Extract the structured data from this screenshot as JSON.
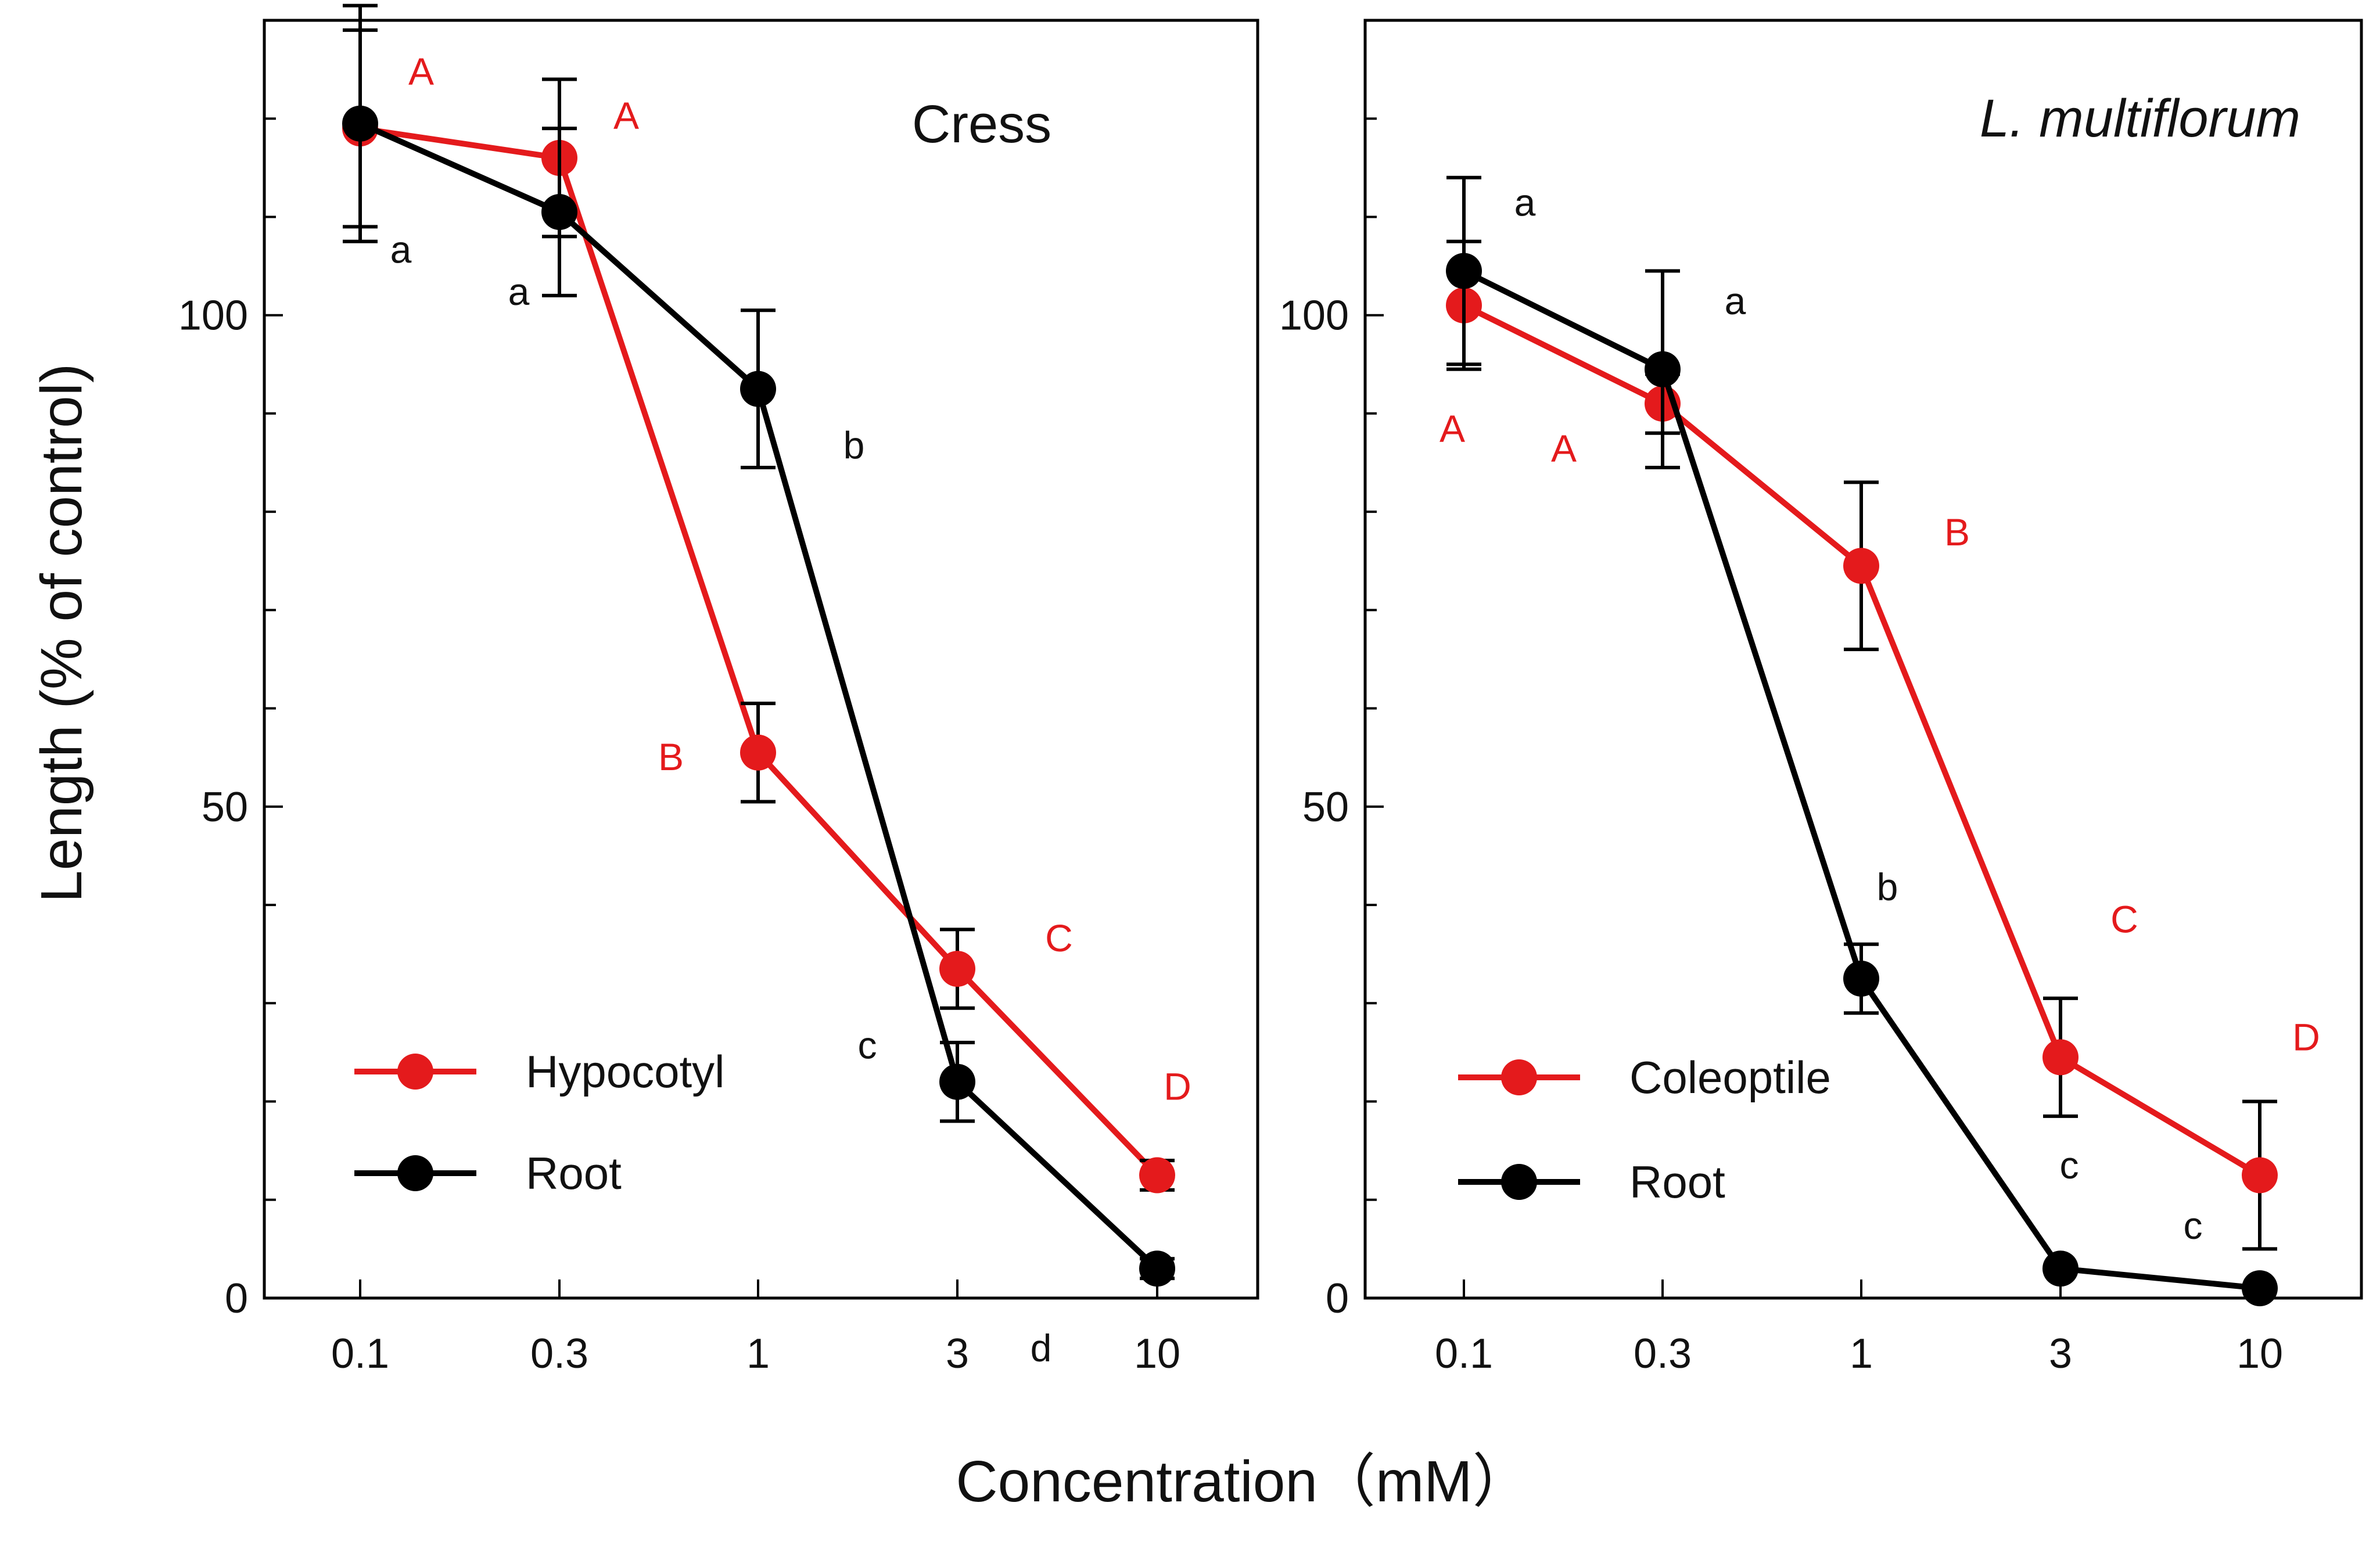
{
  "figure": {
    "ylabel": "Length  (% of control)",
    "xlabel": "Concentration（mM）"
  },
  "colors": {
    "red": "#e41a1c",
    "black": "#000000"
  },
  "chart_data": [
    {
      "type": "line",
      "title": "Cress",
      "title_italic": false,
      "xlabel": "Concentration（mM）",
      "ylabel": "Length  (% of control)",
      "x_scale": "categorical",
      "categories": [
        "0.1",
        "0.3",
        "1",
        "3",
        "10"
      ],
      "ylim": [
        0,
        130
      ],
      "y_ticks": [
        0,
        50,
        100
      ],
      "y_minor_ticks": [
        10,
        20,
        30,
        40,
        60,
        70,
        80,
        90,
        110,
        120
      ],
      "legend_position": "bottom-left",
      "series": [
        {
          "name": "Hypocotyl",
          "color": "#e41a1c",
          "values": [
            119,
            116,
            55.5,
            33.5,
            12.5
          ],
          "err_low": [
            10,
            8,
            5,
            4,
            1.5
          ],
          "err_high": [
            10,
            8,
            5,
            4,
            1.5
          ],
          "letters": [
            "A",
            "A",
            "B",
            "C",
            "D"
          ]
        },
        {
          "name": "Root",
          "color": "#000000",
          "values": [
            119.5,
            110.5,
            92.5,
            22,
            3
          ],
          "err_low": [
            12,
            8.5,
            8,
            4,
            1
          ],
          "err_high": [
            12,
            8.5,
            8,
            4,
            1
          ],
          "letters": [
            "a",
            "a",
            "b",
            "c",
            "d"
          ]
        }
      ]
    },
    {
      "type": "line",
      "title": "L. multiflorum",
      "title_italic": true,
      "xlabel": "Concentration（mM）",
      "ylabel": "Length  (% of control)",
      "x_scale": "categorical",
      "categories": [
        "0.1",
        "0.3",
        "1",
        "3",
        "10"
      ],
      "ylim": [
        0,
        130
      ],
      "y_ticks": [
        0,
        50,
        100
      ],
      "y_minor_ticks": [
        10,
        20,
        30,
        40,
        60,
        70,
        80,
        90,
        110,
        120
      ],
      "legend_position": "bottom-left",
      "series": [
        {
          "name": "Coleoptile",
          "color": "#e41a1c",
          "values": [
            101,
            91,
            74.5,
            24.5,
            12.5
          ],
          "err_low": [
            6.5,
            3,
            8.5,
            6,
            7.5
          ],
          "err_high": [
            6.5,
            3,
            8.5,
            6,
            7.5
          ],
          "letters": [
            "A",
            "A",
            "B",
            "C",
            "D"
          ]
        },
        {
          "name": "Root",
          "color": "#000000",
          "values": [
            104.5,
            94.5,
            32.5,
            3,
            1
          ],
          "err_low": [
            9.5,
            10,
            3.5,
            0,
            0
          ],
          "err_high": [
            9.5,
            10,
            3.5,
            0,
            0
          ],
          "letters": [
            "a",
            "a",
            "b",
            "c",
            "c"
          ]
        }
      ]
    }
  ]
}
